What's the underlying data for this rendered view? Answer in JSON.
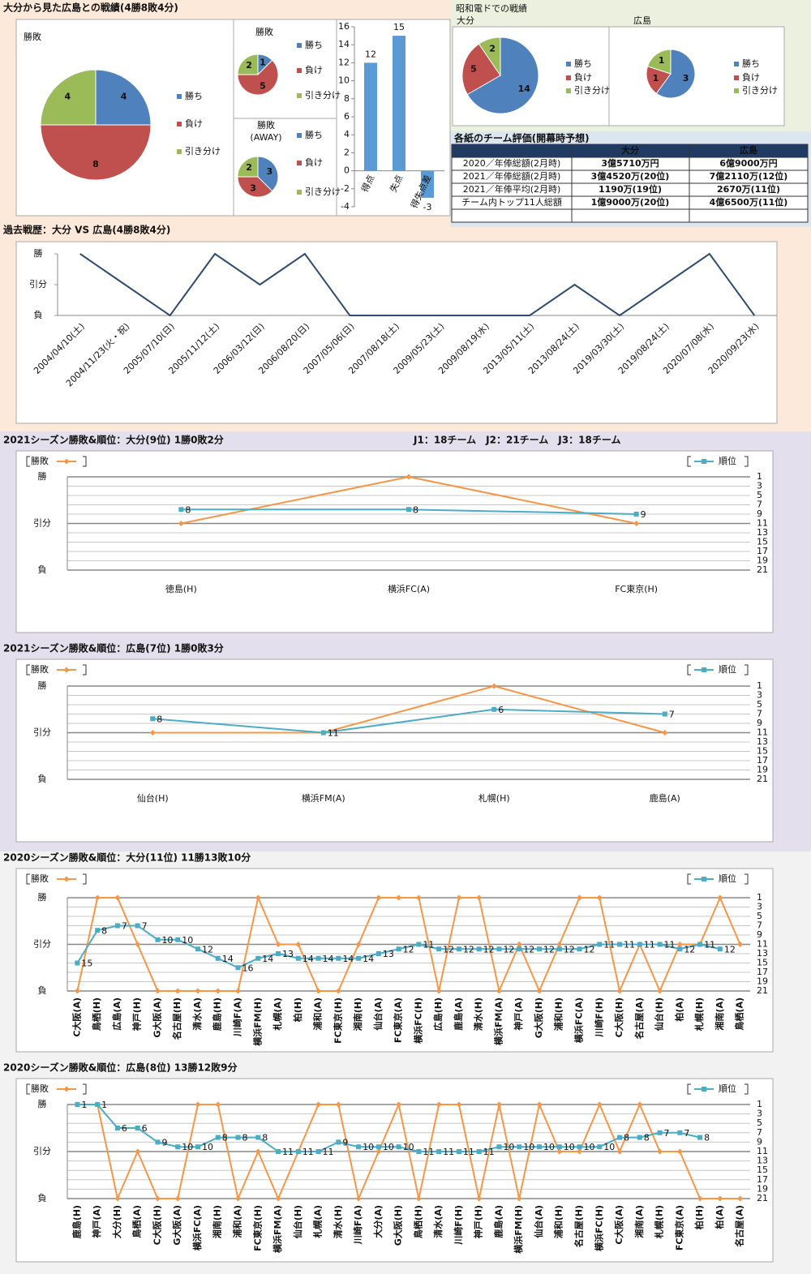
{
  "panels": [
    {
      "title": "大分から見た広島との戦績(4勝8敗4分)"
    },
    {
      "title": "昭和電ドでの戦績"
    }
  ],
  "table": {
    "title": "各紙のチーム評価(開幕時予想)",
    "header": [
      "大分",
      "広島"
    ],
    "rows": [
      [
        "2020／年俸総額(2月時)",
        "3億5710万円",
        "6億9000万円"
      ],
      [
        "2021／年俸総額(2月時)",
        "3億4520万(20位)",
        "7億2110万(12位)"
      ],
      [
        "2021／年俸平均(2月時)",
        "1190万(19位)",
        "2670万(11位)"
      ],
      [
        "チーム内トップ11人総額",
        "1億9000万(20位)",
        "4億6500万(11位)"
      ]
    ]
  },
  "chart_data": [
    {
      "type": "pie",
      "title": "勝敗",
      "categories": [
        "勝ち",
        "負け",
        "引き分け"
      ],
      "values": [
        4,
        8,
        4
      ],
      "colors": [
        "#4f81bd",
        "#c0504d",
        "#9bbb59"
      ]
    },
    {
      "type": "pie",
      "title": "勝敗",
      "categories": [
        "勝ち",
        "負け",
        "引き分け"
      ],
      "values": [
        1,
        5,
        2
      ],
      "colors": [
        "#4f81bd",
        "#c0504d",
        "#9bbb59"
      ]
    },
    {
      "type": "pie",
      "title": "勝敗",
      "subtitle": "(AWAY)",
      "categories": [
        "勝ち",
        "負け",
        "引き分け"
      ],
      "values": [
        3,
        3,
        2
      ],
      "colors": [
        "#4f81bd",
        "#c0504d",
        "#9bbb59"
      ]
    },
    {
      "type": "bar",
      "categories": [
        "得点",
        "失点",
        "得失点差"
      ],
      "values": [
        12,
        15,
        -3
      ],
      "color": "#5b9bd5",
      "ylim": [
        -4,
        16
      ],
      "yticks": [
        -4,
        -2,
        0,
        2,
        4,
        6,
        8,
        10,
        12,
        14,
        16
      ]
    },
    {
      "type": "pie",
      "title": "大分",
      "categories": [
        "勝ち",
        "負け",
        "引き分け"
      ],
      "values": [
        14,
        5,
        2
      ],
      "colors": [
        "#4f81bd",
        "#c0504d",
        "#9bbb59"
      ]
    },
    {
      "type": "pie",
      "title": "広島",
      "categories": [
        "勝ち",
        "負け",
        "引き分け"
      ],
      "values": [
        3,
        1,
        1
      ],
      "colors": [
        "#4f81bd",
        "#c0504d",
        "#9bbb59"
      ]
    },
    {
      "type": "line",
      "title": "過去戦歴：大分 VS 広島(4勝8敗4分)",
      "grid": false,
      "categories": [
        "2004/04/10(土)",
        "2004/11/23(火・祝)",
        "2005/07/10(日)",
        "2005/11/12(土)",
        "2006/03/12(日)",
        "2006/08/20(日)",
        "2007/05/06(日)",
        "2007/08/18(土)",
        "2009/05/23(土)",
        "2009/08/19(水)",
        "2013/05/11(土)",
        "2013/08/24(土)",
        "2019/03/30(土)",
        "2019/08/24(土)",
        "2020/07/08(水)",
        "2020/09/23(水)"
      ],
      "ylim": [
        -1,
        1
      ],
      "yticks": [
        {
          "value": 1,
          "label": "勝"
        },
        {
          "value": 0,
          "label": "引分"
        },
        {
          "value": -1,
          "label": "負"
        }
      ],
      "series": [
        {
          "color": "#2f4b6e",
          "values": [
            1,
            0,
            -1,
            1,
            0,
            1,
            -1,
            -1,
            -1,
            -1,
            -1,
            0,
            -1,
            0,
            1,
            -1
          ]
        }
      ]
    },
    {
      "type": "line",
      "title": "2021シーズン勝敗&順位：大分(9位) 1勝0敗2分",
      "annotation": "J1：18チーム　J2：21チーム　J3：18チーム",
      "grid": true,
      "categories": [
        "徳島(H)",
        "横浜FC(A)",
        "FC東京(H)"
      ],
      "ylim": [
        -1,
        1
      ],
      "yticks": [
        {
          "value": 1,
          "label": "勝"
        },
        {
          "value": 0,
          "label": "引分"
        },
        {
          "value": -1,
          "label": "負"
        }
      ],
      "y2lim": [
        21,
        1
      ],
      "y2ticks": [
        1,
        3,
        5,
        7,
        9,
        11,
        13,
        15,
        17,
        19,
        21
      ],
      "series": [
        {
          "name": "勝敗",
          "color": "#f79646",
          "marker": "diamond",
          "values": [
            0,
            1,
            0
          ]
        },
        {
          "name": "順位",
          "color": "#4bacc6",
          "marker": "square",
          "axis": "y2",
          "data_labels": true,
          "values": [
            8,
            8,
            9
          ]
        }
      ]
    },
    {
      "type": "line",
      "title": "2021シーズン勝敗&順位：広島(7位) 1勝0敗3分",
      "grid": true,
      "categories": [
        "仙台(H)",
        "横浜FM(A)",
        "札幌(H)",
        "鹿島(A)"
      ],
      "ylim": [
        -1,
        1
      ],
      "yticks": [
        {
          "value": 1,
          "label": "勝"
        },
        {
          "value": 0,
          "label": "引分"
        },
        {
          "value": -1,
          "label": "負"
        }
      ],
      "y2lim": [
        21,
        1
      ],
      "y2ticks": [
        1,
        3,
        5,
        7,
        9,
        11,
        13,
        15,
        17,
        19,
        21
      ],
      "series": [
        {
          "name": "勝敗",
          "color": "#f79646",
          "marker": "diamond",
          "values": [
            0,
            0,
            1,
            0
          ]
        },
        {
          "name": "順位",
          "color": "#4bacc6",
          "marker": "square",
          "axis": "y2",
          "data_labels": true,
          "values": [
            8,
            11,
            6,
            7
          ]
        }
      ]
    },
    {
      "type": "line",
      "title": "2020シーズン勝敗&順位：大分(11位) 11勝13敗10分",
      "grid": true,
      "categories": [
        "C大阪(A)",
        "鳥栖(H)",
        "広島(A)",
        "神戸(H)",
        "G大阪(A)",
        "名古屋(H)",
        "清水(A)",
        "鹿島(H)",
        "川崎F(A)",
        "横浜FM(H)",
        "札幌(A)",
        "柏(H)",
        "浦和(A)",
        "FC東京(H)",
        "湘南(H)",
        "仙台(A)",
        "FC東京(A)",
        "横浜FC(H)",
        "広島(H)",
        "鹿島(A)",
        "清水(H)",
        "横浜FM(A)",
        "神戸(A)",
        "G大阪(H)",
        "浦和(H)",
        "横浜FC(A)",
        "川崎F(H)",
        "C大阪(H)",
        "名古屋(A)",
        "仙台(H)",
        "柏(A)",
        "札幌(H)",
        "湘南(A)",
        "鳥栖(A)"
      ],
      "ylim": [
        -1,
        1
      ],
      "yticks": [
        {
          "value": 1,
          "label": "勝"
        },
        {
          "value": 0,
          "label": "引分"
        },
        {
          "value": -1,
          "label": "負"
        }
      ],
      "y2lim": [
        21,
        1
      ],
      "y2ticks": [
        1,
        3,
        5,
        7,
        9,
        11,
        13,
        15,
        17,
        19,
        21
      ],
      "series": [
        {
          "name": "勝敗",
          "color": "#f79646",
          "marker": "diamond",
          "values": [
            -1,
            1,
            1,
            0,
            -1,
            -1,
            -1,
            -1,
            -1,
            1,
            0,
            0,
            -1,
            -1,
            0,
            1,
            1,
            1,
            -1,
            1,
            1,
            -1,
            0,
            -1,
            0,
            1,
            1,
            -1,
            0,
            -1,
            0,
            0,
            1,
            0
          ]
        },
        {
          "name": "順位",
          "color": "#4bacc6",
          "marker": "square",
          "axis": "y2",
          "data_labels": true,
          "values": [
            15,
            8,
            7,
            7,
            10,
            10,
            12,
            14,
            16,
            14,
            13,
            14,
            14,
            14,
            14,
            13,
            12,
            11,
            12,
            12,
            12,
            12,
            12,
            12,
            12,
            12,
            11,
            11,
            11,
            11,
            12,
            11,
            12,
            null
          ]
        }
      ]
    },
    {
      "type": "line",
      "title": "2020シーズン勝敗&順位：広島(8位) 13勝12敗9分",
      "grid": true,
      "categories": [
        "鹿島(H)",
        "神戸(A)",
        "大分(H)",
        "鳥栖(A)",
        "C大阪(H)",
        "G大阪(A)",
        "横浜FC(A)",
        "湘南(H)",
        "浦和(A)",
        "FC東京(H)",
        "横浜FM(A)",
        "仙台(H)",
        "札幌(A)",
        "清水(H)",
        "川崎F(A)",
        "大分(A)",
        "G大阪(H)",
        "鳥栖(H)",
        "清水(A)",
        "川崎F(H)",
        "神戸(H)",
        "鹿島(A)",
        "横浜FM(H)",
        "仙台(A)",
        "浦和(H)",
        "名古屋(H)",
        "横浜FC(H)",
        "C大阪(A)",
        "湘南(A)",
        "札幌(H)",
        "FC東京(A)",
        "柏(H)",
        "柏(A)",
        "名古屋(A)"
      ],
      "ylim": [
        -1,
        1
      ],
      "yticks": [
        {
          "value": 1,
          "label": "勝"
        },
        {
          "value": 0,
          "label": "引分"
        },
        {
          "value": -1,
          "label": "負"
        }
      ],
      "y2lim": [
        21,
        1
      ],
      "y2ticks": [
        1,
        3,
        5,
        7,
        9,
        11,
        13,
        15,
        17,
        19,
        21
      ],
      "series": [
        {
          "name": "勝敗",
          "color": "#f79646",
          "marker": "diamond",
          "values": [
            1,
            1,
            -1,
            0,
            -1,
            -1,
            1,
            1,
            -1,
            0,
            -1,
            0,
            1,
            1,
            -1,
            0,
            1,
            -1,
            1,
            1,
            -1,
            1,
            -1,
            1,
            0,
            0,
            1,
            0,
            1,
            0,
            0,
            -1,
            -1,
            -1
          ]
        },
        {
          "name": "順位",
          "color": "#4bacc6",
          "marker": "square",
          "axis": "y2",
          "data_labels": true,
          "values": [
            1,
            1,
            6,
            6,
            9,
            10,
            10,
            8,
            8,
            8,
            11,
            11,
            11,
            9,
            10,
            10,
            10,
            11,
            11,
            11,
            11,
            10,
            10,
            10,
            10,
            10,
            10,
            8,
            8,
            7,
            7,
            8,
            null,
            null
          ]
        }
      ]
    }
  ]
}
